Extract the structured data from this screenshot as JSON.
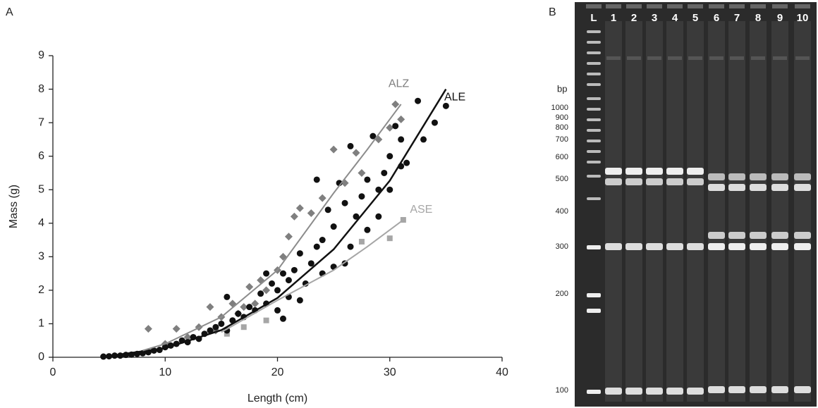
{
  "chart_data": {
    "type": "scatter",
    "panel_label": "A",
    "x_label": "Length (cm)",
    "y_label": "Mass (g)",
    "xlim": [
      0,
      40
    ],
    "xticks": [
      0,
      10,
      20,
      30,
      40
    ],
    "ylim": [
      0,
      9
    ],
    "yticks": [
      0,
      1,
      2,
      3,
      4,
      5,
      6,
      7,
      8,
      9
    ],
    "grid": false,
    "series": [
      {
        "name": "ALE",
        "color": "#111111",
        "marker": "circle",
        "x": [
          4.5,
          5,
          5.5,
          6,
          6.5,
          7,
          7.5,
          8,
          8.5,
          9,
          9.5,
          10,
          10.5,
          11,
          11.5,
          12,
          12.5,
          13,
          13.5,
          14,
          14.5,
          15,
          15.5,
          15.5,
          16,
          16.5,
          17,
          17.5,
          18,
          18.5,
          19,
          19,
          19.5,
          20,
          20,
          20.5,
          20.5,
          21,
          21,
          21.5,
          22,
          22,
          22.5,
          23,
          23.5,
          23.5,
          24,
          24,
          24.5,
          25,
          25,
          25.5,
          26,
          26,
          26.5,
          26.5,
          27,
          27.5,
          28,
          28,
          28.5,
          29,
          29,
          29.5,
          30,
          30,
          30.5,
          31,
          31,
          31.5,
          32.5,
          33,
          34,
          35
        ],
        "values": [
          0.02,
          0.03,
          0.05,
          0.05,
          0.07,
          0.08,
          0.1,
          0.12,
          0.15,
          0.2,
          0.22,
          0.3,
          0.35,
          0.4,
          0.5,
          0.45,
          0.6,
          0.55,
          0.7,
          0.8,
          0.9,
          1.0,
          0.8,
          1.8,
          1.1,
          1.3,
          1.2,
          1.5,
          1.4,
          1.9,
          2.5,
          1.6,
          2.2,
          2.0,
          1.4,
          1.15,
          2.5,
          2.3,
          1.8,
          2.6,
          3.1,
          1.7,
          2.2,
          2.8,
          5.3,
          3.3,
          3.5,
          2.5,
          4.4,
          3.9,
          2.7,
          5.2,
          4.6,
          2.8,
          3.3,
          6.3,
          4.2,
          4.8,
          5.3,
          3.8,
          6.6,
          5.0,
          4.2,
          5.5,
          6.0,
          5.0,
          6.9,
          5.7,
          6.5,
          5.8,
          7.65,
          6.5,
          7.0,
          7.5
        ],
        "fit": {
          "x": [
            4.5,
            5,
            10,
            15,
            20,
            25,
            30,
            35
          ],
          "values": [
            0.03,
            0.04,
            0.27,
            0.81,
            1.77,
            3.22,
            5.27,
            8.0
          ]
        }
      },
      {
        "name": "ALZ",
        "color": "#7f7f7f",
        "marker": "diamond",
        "x": [
          8.5,
          10,
          11,
          12,
          13,
          14,
          14.5,
          15,
          16,
          16.5,
          17,
          17.5,
          18,
          18.5,
          19,
          20,
          20.5,
          21,
          21.5,
          22,
          23,
          24,
          25,
          26,
          27,
          27.5,
          29,
          30,
          30.5,
          31
        ],
        "values": [
          0.85,
          0.4,
          0.85,
          0.6,
          0.9,
          1.5,
          0.8,
          1.2,
          1.6,
          1.3,
          1.5,
          2.1,
          1.6,
          2.3,
          2.0,
          2.6,
          3.0,
          3.6,
          4.2,
          4.45,
          4.3,
          4.75,
          6.2,
          5.2,
          6.1,
          5.5,
          6.5,
          6.85,
          7.55,
          7.1
        ],
        "fit": {
          "x": [
            8,
            10,
            15,
            20,
            25,
            28,
            31
          ],
          "values": [
            0.2,
            0.4,
            1.2,
            2.6,
            4.9,
            6.2,
            7.55
          ]
        }
      },
      {
        "name": "ASE",
        "color": "#a6a6a6",
        "marker": "square",
        "x": [
          15.5,
          17,
          19,
          27.5,
          30,
          31.2
        ],
        "values": [
          0.7,
          0.9,
          1.1,
          3.45,
          3.55,
          4.1
        ],
        "fit": {
          "x": [
            15,
            20,
            25,
            28,
            31.2
          ],
          "values": [
            0.75,
            1.7,
            2.6,
            3.3,
            4.1
          ]
        }
      }
    ]
  },
  "gel": {
    "panel_label": "B",
    "unit": "bp",
    "lanes": [
      "L",
      "1",
      "2",
      "3",
      "4",
      "5",
      "6",
      "7",
      "8",
      "9",
      "10"
    ],
    "sizes": [
      1000,
      900,
      800,
      700,
      600,
      500,
      400,
      300,
      200,
      100
    ]
  }
}
